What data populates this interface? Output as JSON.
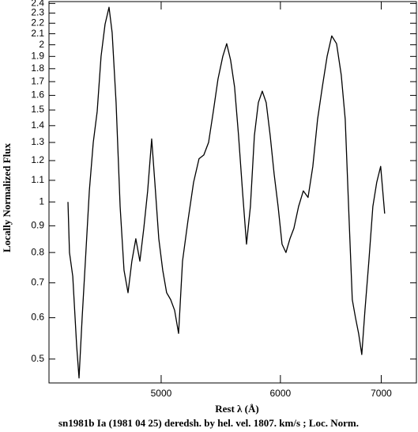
{
  "chart_data": {
    "type": "line",
    "xlabel": "Rest λ (Å)",
    "ylabel": "Locally Normalized Flux",
    "caption": "sn1981b Ia (1981 04 25) deredsh. by hel. vel.  1807. km/s ;  Loc. Norm.",
    "log_x": true,
    "log_y": true,
    "color": "#000000",
    "xlim": [
      4212,
      7387
    ],
    "ylim": [
      0.45,
      2.42
    ],
    "xticks": [
      5000,
      6000,
      7000
    ],
    "yticks": [
      0.5,
      0.6,
      0.7,
      0.8,
      0.9,
      1,
      1.1,
      1.2,
      1.3,
      1.4,
      1.5,
      1.6,
      1.7,
      1.8,
      1.9,
      2,
      2.1,
      2.2,
      2.3,
      2.4
    ],
    "x": [
      4336,
      4346,
      4368,
      4394,
      4410,
      4431,
      4453,
      4480,
      4507,
      4534,
      4561,
      4589,
      4617,
      4639,
      4667,
      4696,
      4724,
      4753,
      4781,
      4810,
      4840,
      4869,
      4898,
      4928,
      4952,
      4982,
      5012,
      5042,
      5073,
      5104,
      5135,
      5166,
      5209,
      5254,
      5298,
      5337,
      5376,
      5415,
      5454,
      5494,
      5527,
      5560,
      5594,
      5628,
      5662,
      5697,
      5731,
      5766,
      5801,
      5836,
      5871,
      5907,
      5943,
      5979,
      6015,
      6051,
      6088,
      6125,
      6169,
      6214,
      6259,
      6305,
      6351,
      6397,
      6444,
      6490,
      6538,
      6585,
      6625,
      6665,
      6697,
      6730,
      6762,
      6795,
      6828,
      6869,
      6911,
      6952,
      6994,
      7037
    ],
    "values": [
      1.0,
      0.8,
      0.72,
      0.53,
      0.46,
      0.6,
      0.77,
      1.05,
      1.3,
      1.49,
      1.9,
      2.19,
      2.36,
      2.11,
      1.55,
      0.98,
      0.74,
      0.67,
      0.77,
      0.85,
      0.77,
      0.89,
      1.05,
      1.32,
      1.09,
      0.85,
      0.74,
      0.67,
      0.65,
      0.62,
      0.56,
      0.77,
      0.92,
      1.09,
      1.21,
      1.23,
      1.3,
      1.49,
      1.72,
      1.9,
      2.01,
      1.87,
      1.66,
      1.34,
      1.05,
      0.83,
      0.98,
      1.34,
      1.55,
      1.63,
      1.55,
      1.34,
      1.13,
      0.98,
      0.83,
      0.8,
      0.85,
      0.89,
      0.98,
      1.05,
      1.02,
      1.17,
      1.44,
      1.66,
      1.9,
      2.08,
      2.01,
      1.75,
      1.44,
      0.92,
      0.65,
      0.6,
      0.56,
      0.51,
      0.62,
      0.77,
      0.98,
      1.09,
      1.17,
      0.95
    ]
  }
}
